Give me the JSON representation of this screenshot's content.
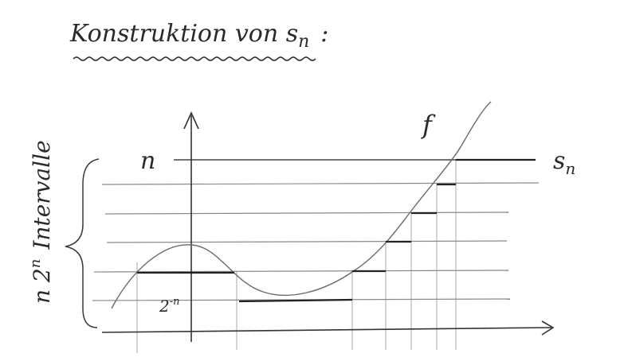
{
  "heading": "Konstruktion von s",
  "heading_sub": "n",
  "heading_colon": ":",
  "side_label": "n 2",
  "side_label_sup": "n",
  "side_label_word": "Intervalle",
  "function_label": "f",
  "level_label": "n",
  "step_label": "s",
  "step_label_sub": "n",
  "spacing_label": "2",
  "spacing_label_sup": "-n",
  "ink_color": "#3a3a3a",
  "grid_color": "#8a8a8a"
}
